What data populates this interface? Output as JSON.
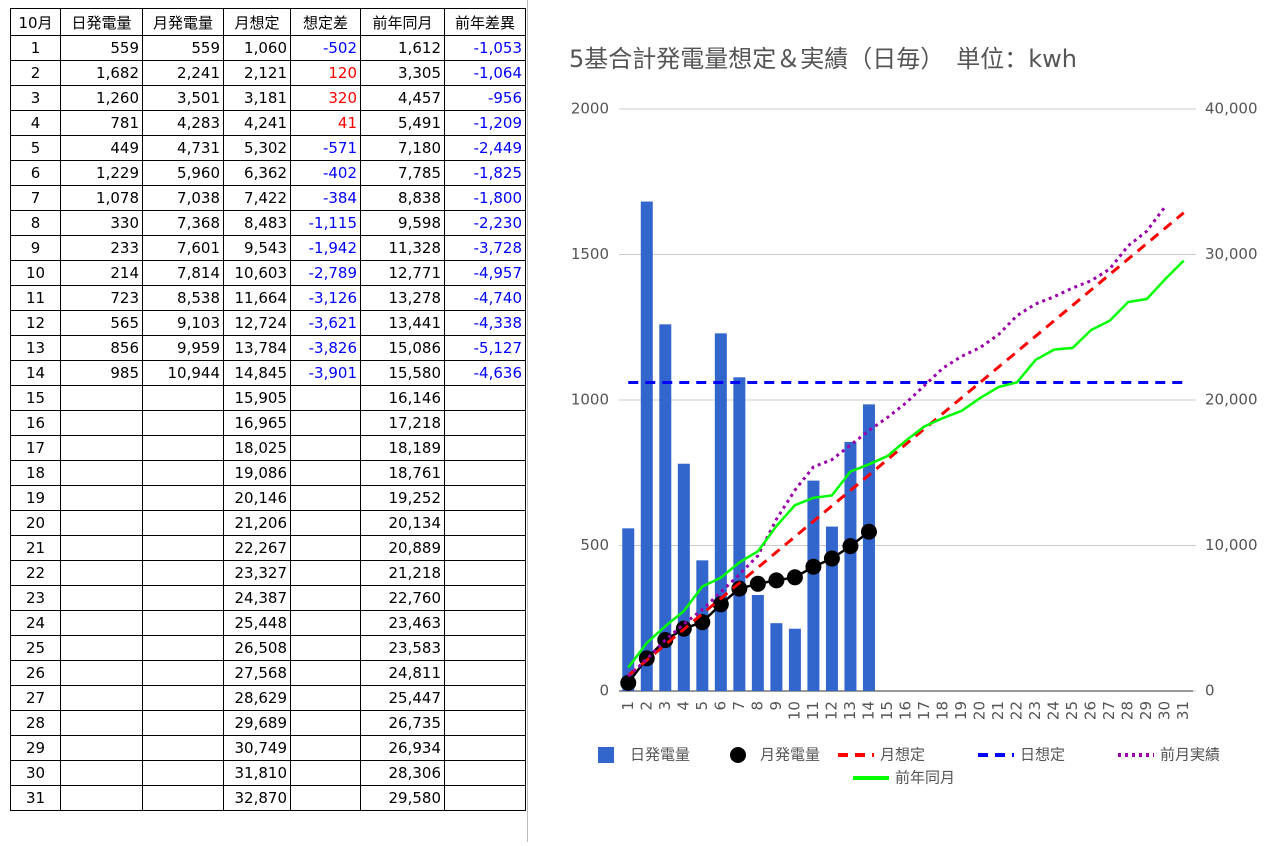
{
  "table": {
    "header": [
      "10月",
      "日発電量",
      "月発電量",
      "月想定",
      "想定差",
      "前年同月",
      "前年差異"
    ],
    "positive_color": "#ff0000",
    "negative_color": "#0000ff",
    "colored_columns": [
      4,
      6
    ],
    "rows": [
      [
        "1",
        "559",
        "559",
        "1,060",
        "-502",
        "1,612",
        "-1,053"
      ],
      [
        "2",
        "1,682",
        "2,241",
        "2,121",
        "120",
        "3,305",
        "-1,064"
      ],
      [
        "3",
        "1,260",
        "3,501",
        "3,181",
        "320",
        "4,457",
        "-956"
      ],
      [
        "4",
        "781",
        "4,283",
        "4,241",
        "41",
        "5,491",
        "-1,209"
      ],
      [
        "5",
        "449",
        "4,731",
        "5,302",
        "-571",
        "7,180",
        "-2,449"
      ],
      [
        "6",
        "1,229",
        "5,960",
        "6,362",
        "-402",
        "7,785",
        "-1,825"
      ],
      [
        "7",
        "1,078",
        "7,038",
        "7,422",
        "-384",
        "8,838",
        "-1,800"
      ],
      [
        "8",
        "330",
        "7,368",
        "8,483",
        "-1,115",
        "9,598",
        "-2,230"
      ],
      [
        "9",
        "233",
        "7,601",
        "9,543",
        "-1,942",
        "11,328",
        "-3,728"
      ],
      [
        "10",
        "214",
        "7,814",
        "10,603",
        "-2,789",
        "12,771",
        "-4,957"
      ],
      [
        "11",
        "723",
        "8,538",
        "11,664",
        "-3,126",
        "13,278",
        "-4,740"
      ],
      [
        "12",
        "565",
        "9,103",
        "12,724",
        "-3,621",
        "13,441",
        "-4,338"
      ],
      [
        "13",
        "856",
        "9,959",
        "13,784",
        "-3,826",
        "15,086",
        "-5,127"
      ],
      [
        "14",
        "985",
        "10,944",
        "14,845",
        "-3,901",
        "15,580",
        "-4,636"
      ],
      [
        "15",
        null,
        null,
        "15,905",
        null,
        "16,146",
        null
      ],
      [
        "16",
        null,
        null,
        "16,965",
        null,
        "17,218",
        null
      ],
      [
        "17",
        null,
        null,
        "18,025",
        null,
        "18,189",
        null
      ],
      [
        "18",
        null,
        null,
        "19,086",
        null,
        "18,761",
        null
      ],
      [
        "19",
        null,
        null,
        "20,146",
        null,
        "19,252",
        null
      ],
      [
        "20",
        null,
        null,
        "21,206",
        null,
        "20,134",
        null
      ],
      [
        "21",
        null,
        null,
        "22,267",
        null,
        "20,889",
        null
      ],
      [
        "22",
        null,
        null,
        "23,327",
        null,
        "21,218",
        null
      ],
      [
        "23",
        null,
        null,
        "24,387",
        null,
        "22,760",
        null
      ],
      [
        "24",
        null,
        null,
        "25,448",
        null,
        "23,463",
        null
      ],
      [
        "25",
        null,
        null,
        "26,508",
        null,
        "23,583",
        null
      ],
      [
        "26",
        null,
        null,
        "27,568",
        null,
        "24,811",
        null
      ],
      [
        "27",
        null,
        null,
        "28,629",
        null,
        "25,447",
        null
      ],
      [
        "28",
        null,
        null,
        "29,689",
        null,
        "26,735",
        null
      ],
      [
        "29",
        null,
        null,
        "30,749",
        null,
        "26,934",
        null
      ],
      [
        "30",
        null,
        null,
        "31,810",
        null,
        "28,306",
        null
      ],
      [
        "31",
        null,
        null,
        "32,870",
        null,
        "29,580",
        null
      ]
    ]
  },
  "chart_data": {
    "type": "combo",
    "title": "5基合計発電量想定＆実績（日毎）　単位：kwh",
    "categories": [
      "1",
      "2",
      "3",
      "4",
      "5",
      "6",
      "7",
      "8",
      "9",
      "10",
      "11",
      "12",
      "13",
      "14",
      "15",
      "16",
      "17",
      "18",
      "19",
      "20",
      "21",
      "22",
      "23",
      "24",
      "25",
      "26",
      "27",
      "28",
      "29",
      "30",
      "31"
    ],
    "ylim": [
      0,
      2000
    ],
    "yticks": [
      0,
      500,
      1000,
      1500,
      2000
    ],
    "y2lim": [
      0,
      40000
    ],
    "y2ticks": [
      0,
      {
        "value": 10000,
        "label": "10,000"
      },
      {
        "value": 20000,
        "label": "20,000"
      },
      {
        "value": 30000,
        "label": "30,000"
      },
      {
        "value": 40000,
        "label": "40,000"
      }
    ],
    "grid": true,
    "series": [
      {
        "name": "日発電量",
        "kind": "bar",
        "color": "#3366cc",
        "values": [
          559,
          1682,
          1260,
          781,
          449,
          1229,
          1078,
          330,
          233,
          214,
          723,
          565,
          856,
          985,
          null,
          null,
          null,
          null,
          null,
          null,
          null,
          null,
          null,
          null,
          null,
          null,
          null,
          null,
          null,
          null,
          null
        ]
      },
      {
        "name": "月発電量",
        "kind": "line",
        "axis": "y2",
        "color": "#000000",
        "dash": "solid",
        "marker": true,
        "values": [
          559,
          2241,
          3501,
          4283,
          4731,
          5960,
          7038,
          7368,
          7601,
          7814,
          8538,
          9103,
          9959,
          10944,
          null,
          null,
          null,
          null,
          null,
          null,
          null,
          null,
          null,
          null,
          null,
          null,
          null,
          null,
          null,
          null,
          null
        ]
      },
      {
        "name": "月想定",
        "kind": "line",
        "axis": "y2",
        "color": "#ff0000",
        "dash": "dashed",
        "values": [
          1060,
          2121,
          3181,
          4241,
          5302,
          6362,
          7422,
          8483,
          9543,
          10603,
          11664,
          12724,
          13784,
          14845,
          15905,
          16965,
          18025,
          19086,
          20146,
          21206,
          22267,
          23327,
          24387,
          25448,
          26508,
          27568,
          28629,
          29689,
          30749,
          31810,
          32870
        ]
      },
      {
        "name": "日想定",
        "kind": "line",
        "color": "#0000ff",
        "dash": "dashed",
        "values": [
          1060,
          1060,
          1060,
          1060,
          1060,
          1060,
          1060,
          1060,
          1060,
          1060,
          1060,
          1060,
          1060,
          1060,
          1060,
          1060,
          1060,
          1060,
          1060,
          1060,
          1060,
          1060,
          1060,
          1060,
          1060,
          1060,
          1060,
          1060,
          1060,
          1060,
          1060
        ]
      },
      {
        "name": "前月実績",
        "kind": "line",
        "axis": "y2",
        "color": "#9900aa",
        "dash": "dotted",
        "values": [
          1000,
          2200,
          3500,
          4600,
          5600,
          6800,
          8000,
          9300,
          11800,
          13800,
          15400,
          15900,
          16900,
          17900,
          18800,
          19800,
          21000,
          22200,
          23000,
          23600,
          24500,
          25800,
          26600,
          27100,
          27700,
          28200,
          29000,
          30600,
          31600,
          33300,
          null
        ]
      },
      {
        "name": "前年同月",
        "kind": "line",
        "axis": "y2",
        "color": "#00ff00",
        "dash": "solid",
        "values": [
          1612,
          3305,
          4457,
          5491,
          7180,
          7785,
          8838,
          9598,
          11328,
          12771,
          13278,
          13441,
          15086,
          15580,
          16146,
          17218,
          18189,
          18761,
          19252,
          20134,
          20889,
          21218,
          22760,
          23463,
          23583,
          24811,
          25447,
          26735,
          26934,
          28306,
          29580
        ]
      }
    ]
  }
}
